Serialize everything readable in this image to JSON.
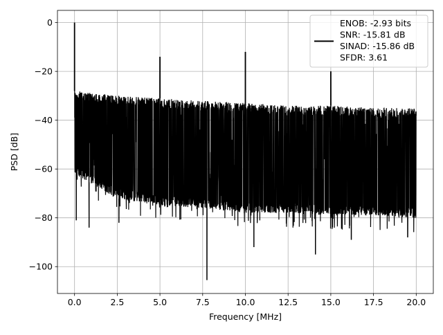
{
  "chart_data": {
    "type": "line",
    "title": "",
    "xlabel": "Frequency [MHz]",
    "ylabel": "PSD [dB]",
    "xlim": [
      -1.0,
      21.0
    ],
    "ylim": [
      -111.0,
      5.0
    ],
    "xticks": [
      0.0,
      2.5,
      5.0,
      7.5,
      10.0,
      12.5,
      15.0,
      17.5,
      20.0
    ],
    "xtick_labels": [
      "0.0",
      "2.5",
      "5.0",
      "7.5",
      "10.0",
      "12.5",
      "15.0",
      "17.5",
      "20.0"
    ],
    "yticks": [
      0,
      -20,
      -40,
      -60,
      -80,
      -100
    ],
    "ytick_labels": [
      "0",
      "−20",
      "−40",
      "−60",
      "−80",
      "−100"
    ],
    "grid": true,
    "legend_position": "top-right",
    "legend_entries": [
      "ENOB: -2.93 bits",
      "SNR: -15.81 dB",
      "SINAD: -15.86 dB",
      "SFDR: 3.61"
    ],
    "series": [
      {
        "color": "#000000",
        "noise_band": {
          "x": [
            0.0,
            2.5,
            5.0,
            7.5,
            10.0,
            12.5,
            15.0,
            17.5,
            20.0
          ],
          "upper": [
            -28,
            -30,
            -31,
            -32,
            -33,
            -34,
            -34,
            -35,
            -35
          ],
          "lower": [
            -62,
            -72,
            -75,
            -76,
            -78,
            -78,
            -79,
            -79,
            -80
          ]
        },
        "peaks": [
          {
            "x": 0.0,
            "y": 0.0
          },
          {
            "x": 5.0,
            "y": -14.0
          },
          {
            "x": 10.0,
            "y": -12.0
          },
          {
            "x": 15.0,
            "y": -20.0
          }
        ],
        "dips": [
          {
            "x": 0.1,
            "y": -81.0
          },
          {
            "x": 0.85,
            "y": -84.0
          },
          {
            "x": 2.6,
            "y": -82.0
          },
          {
            "x": 7.75,
            "y": -105.5
          },
          {
            "x": 10.5,
            "y": -92.0
          },
          {
            "x": 14.1,
            "y": -95.0
          },
          {
            "x": 16.2,
            "y": -89.0
          },
          {
            "x": 19.5,
            "y": -88.0
          }
        ]
      }
    ]
  }
}
